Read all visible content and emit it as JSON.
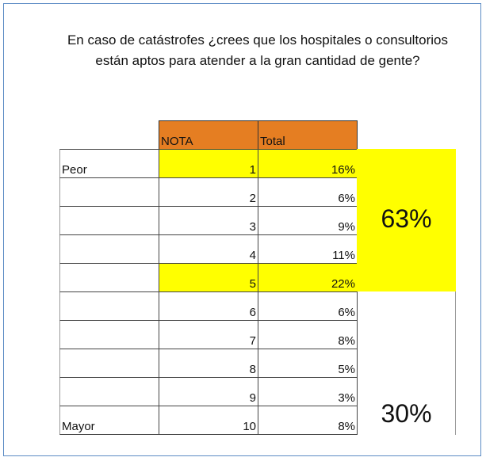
{
  "title": "En caso de catástrofes ¿crees que los hospitales o consultorios están aptos para atender a la gran cantidad de gente?",
  "table": {
    "header": [
      "NOTA",
      "Total"
    ],
    "header_color": "#e57e22",
    "highlight_color": "#ffff00",
    "rows": [
      {
        "label": "Peor",
        "nota": "1",
        "total": "16%",
        "highlighted": true
      },
      {
        "nota": "2",
        "total": "6%"
      },
      {
        "nota": "3",
        "total": "9%"
      },
      {
        "nota": "4",
        "total": "11%"
      },
      {
        "nota": "5",
        "total": "22%",
        "highlighted": true
      },
      {
        "nota": "6",
        "total": "6%"
      },
      {
        "nota": "7",
        "total": "8%"
      },
      {
        "nota": "8",
        "total": "5%"
      },
      {
        "nota": "9",
        "total": "3%"
      },
      {
        "label": "Mayor",
        "nota": "10",
        "total": "8%"
      }
    ],
    "summaries": [
      {
        "text": "63%",
        "highlighted": true
      },
      {
        "text": "30%"
      }
    ]
  }
}
